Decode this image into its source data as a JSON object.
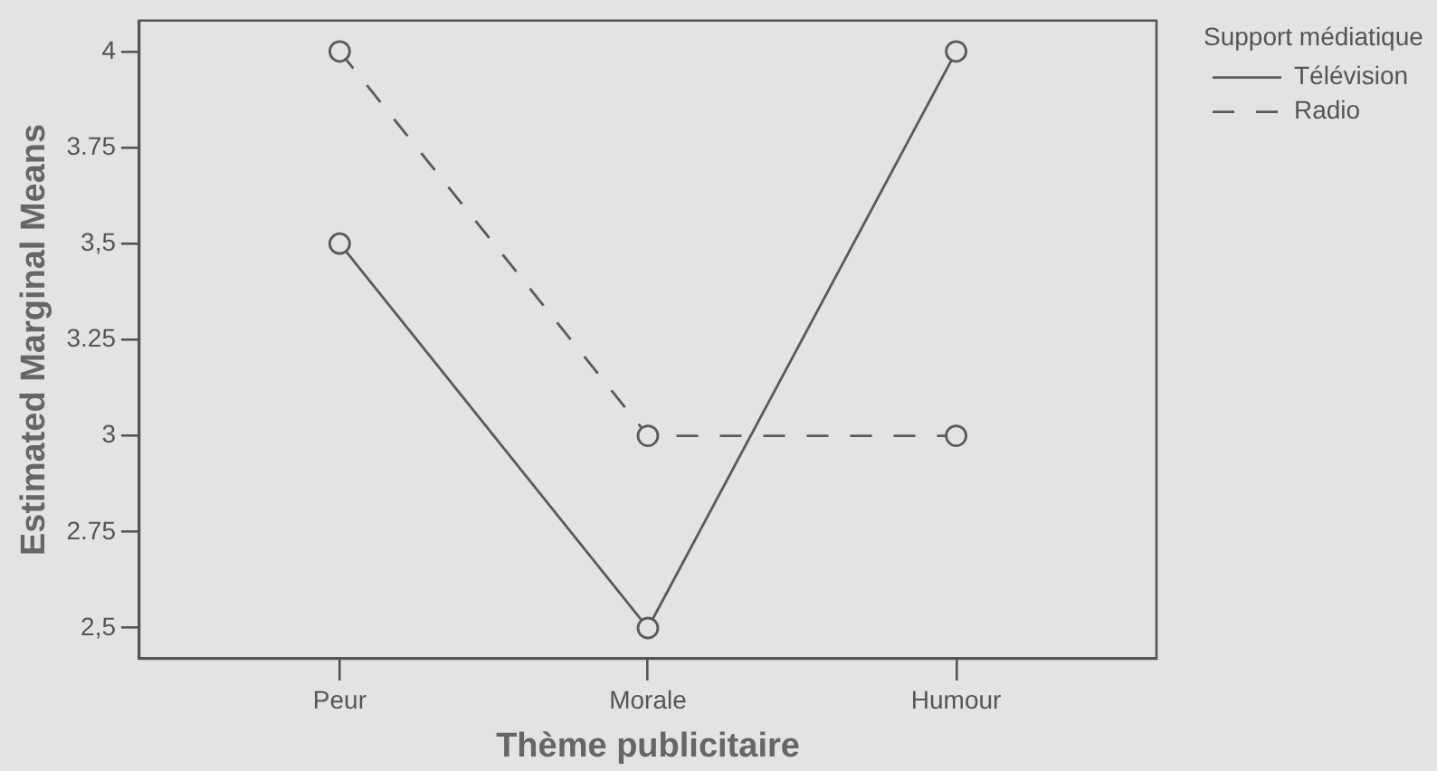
{
  "chart_data": {
    "type": "line",
    "xlabel": "Thème publicitaire",
    "ylabel": "Estimated Marginal Means",
    "legend_title": "Support médiatique",
    "categories": [
      "Peur",
      "Morale",
      "Humour"
    ],
    "series": [
      {
        "name": "Télévision",
        "color": "#5a5a5a",
        "line_style": "solid",
        "values": [
          3.5,
          2.5,
          4
        ]
      },
      {
        "name": "Radio",
        "color": "#5a5a5a",
        "line_style": "dashed",
        "values": [
          4,
          3,
          3
        ]
      }
    ],
    "ylim": [
      2.42,
      4.08
    ],
    "yticks": [
      {
        "value": 2.5,
        "label": "2,5"
      },
      2.75,
      3,
      3.25,
      {
        "value": 3.5,
        "label": "3,5"
      },
      3.75,
      4
    ],
    "grid": false,
    "legend": "top right",
    "marker": "circle"
  }
}
